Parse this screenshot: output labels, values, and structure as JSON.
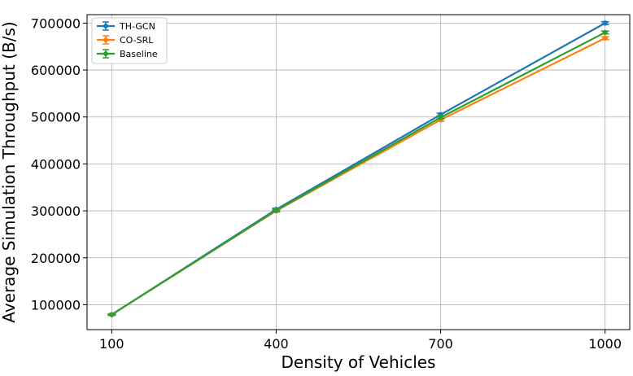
{
  "chart_data": {
    "type": "line",
    "xlabel": "Density of Vehicles",
    "ylabel": "Average Simulation Throughput (B/s)",
    "x": [
      100,
      400,
      700,
      1000
    ],
    "xlim": [
      55,
      1045
    ],
    "ylim": [
      47000,
      718000
    ],
    "xticks": [
      100,
      400,
      700,
      1000
    ],
    "xtick_labels": [
      "100",
      "400",
      "700",
      "1000"
    ],
    "yticks": [
      100000,
      200000,
      300000,
      400000,
      500000,
      600000,
      700000
    ],
    "ytick_labels": [
      "100000",
      "200000",
      "300000",
      "400000",
      "500000",
      "600000",
      "700000"
    ],
    "grid": true,
    "legend_position": "top-left",
    "series": [
      {
        "name": "TH-GCN",
        "color": "#1f77b4",
        "values": [
          79000,
          303000,
          505000,
          700000
        ],
        "errors": [
          1500,
          2500,
          3000,
          3000
        ]
      },
      {
        "name": "CO-SRL",
        "color": "#ff7f0e",
        "values": [
          79000,
          300000,
          494000,
          668000
        ],
        "errors": [
          1500,
          2500,
          3000,
          3000
        ]
      },
      {
        "name": "Baseline",
        "color": "#2ca02c",
        "values": [
          79000,
          301000,
          499000,
          680000
        ],
        "errors": [
          1500,
          2500,
          3000,
          3000
        ]
      }
    ]
  }
}
